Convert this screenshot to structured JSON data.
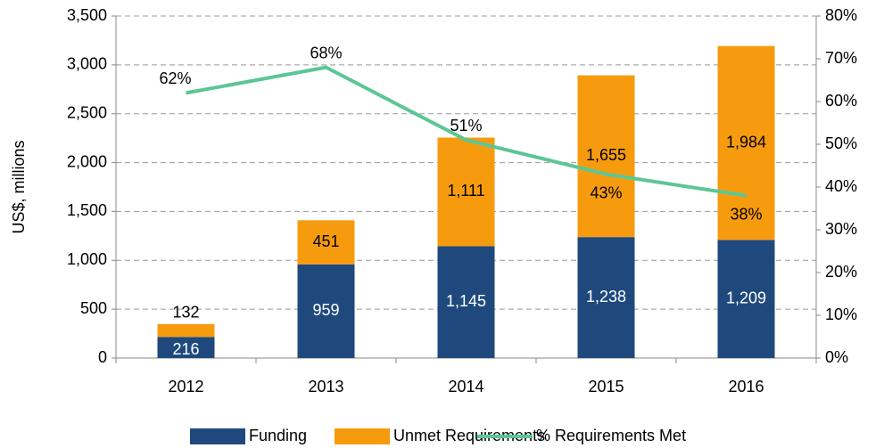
{
  "chart_data": {
    "type": "bar",
    "stacked": true,
    "ylabel": "US$, millions",
    "categories": [
      "2012",
      "2013",
      "2014",
      "2015",
      "2016"
    ],
    "series": [
      {
        "name": "Funding",
        "type": "bar",
        "color": "#1f497d",
        "values": [
          216,
          959,
          1145,
          1238,
          1209
        ],
        "value_labels": [
          "216",
          "959",
          "1,145",
          "1,238",
          "1,209"
        ]
      },
      {
        "name": "Unmet Requirements",
        "type": "bar",
        "color": "#f79b0e",
        "values": [
          132,
          451,
          1111,
          1655,
          1984
        ],
        "value_labels": [
          "132",
          "451",
          "1,111",
          "1,655",
          "1,984"
        ]
      },
      {
        "name": "% Requirements Met",
        "type": "line",
        "axis": "y2",
        "color": "#5cc694",
        "values": [
          62,
          68,
          51,
          43,
          38
        ],
        "value_labels": [
          "62%",
          "68%",
          "51%",
          "43%",
          "38%"
        ]
      }
    ],
    "ylim": [
      0,
      3500
    ],
    "yticks": [
      0,
      500,
      {
        "value": 1000,
        "label": "1,000"
      },
      {
        "value": 1500,
        "label": "1,500"
      },
      {
        "value": 2000,
        "label": "2,000"
      },
      {
        "value": 2500,
        "label": "2,500"
      },
      {
        "value": 3000,
        "label": "3,000"
      },
      {
        "value": 3500,
        "label": "3,500"
      }
    ],
    "y2lim": [
      0,
      80
    ],
    "y2ticks": [
      {
        "value": 0,
        "label": "0%"
      },
      {
        "value": 10,
        "label": "10%"
      },
      {
        "value": 20,
        "label": "20%"
      },
      {
        "value": 30,
        "label": "30%"
      },
      {
        "value": 40,
        "label": "40%"
      },
      {
        "value": 50,
        "label": "50%"
      },
      {
        "value": 60,
        "label": "60%"
      },
      {
        "value": 70,
        "label": "70%"
      },
      {
        "value": 80,
        "label": "80%"
      }
    ],
    "grid": true,
    "legend": "bottom"
  }
}
